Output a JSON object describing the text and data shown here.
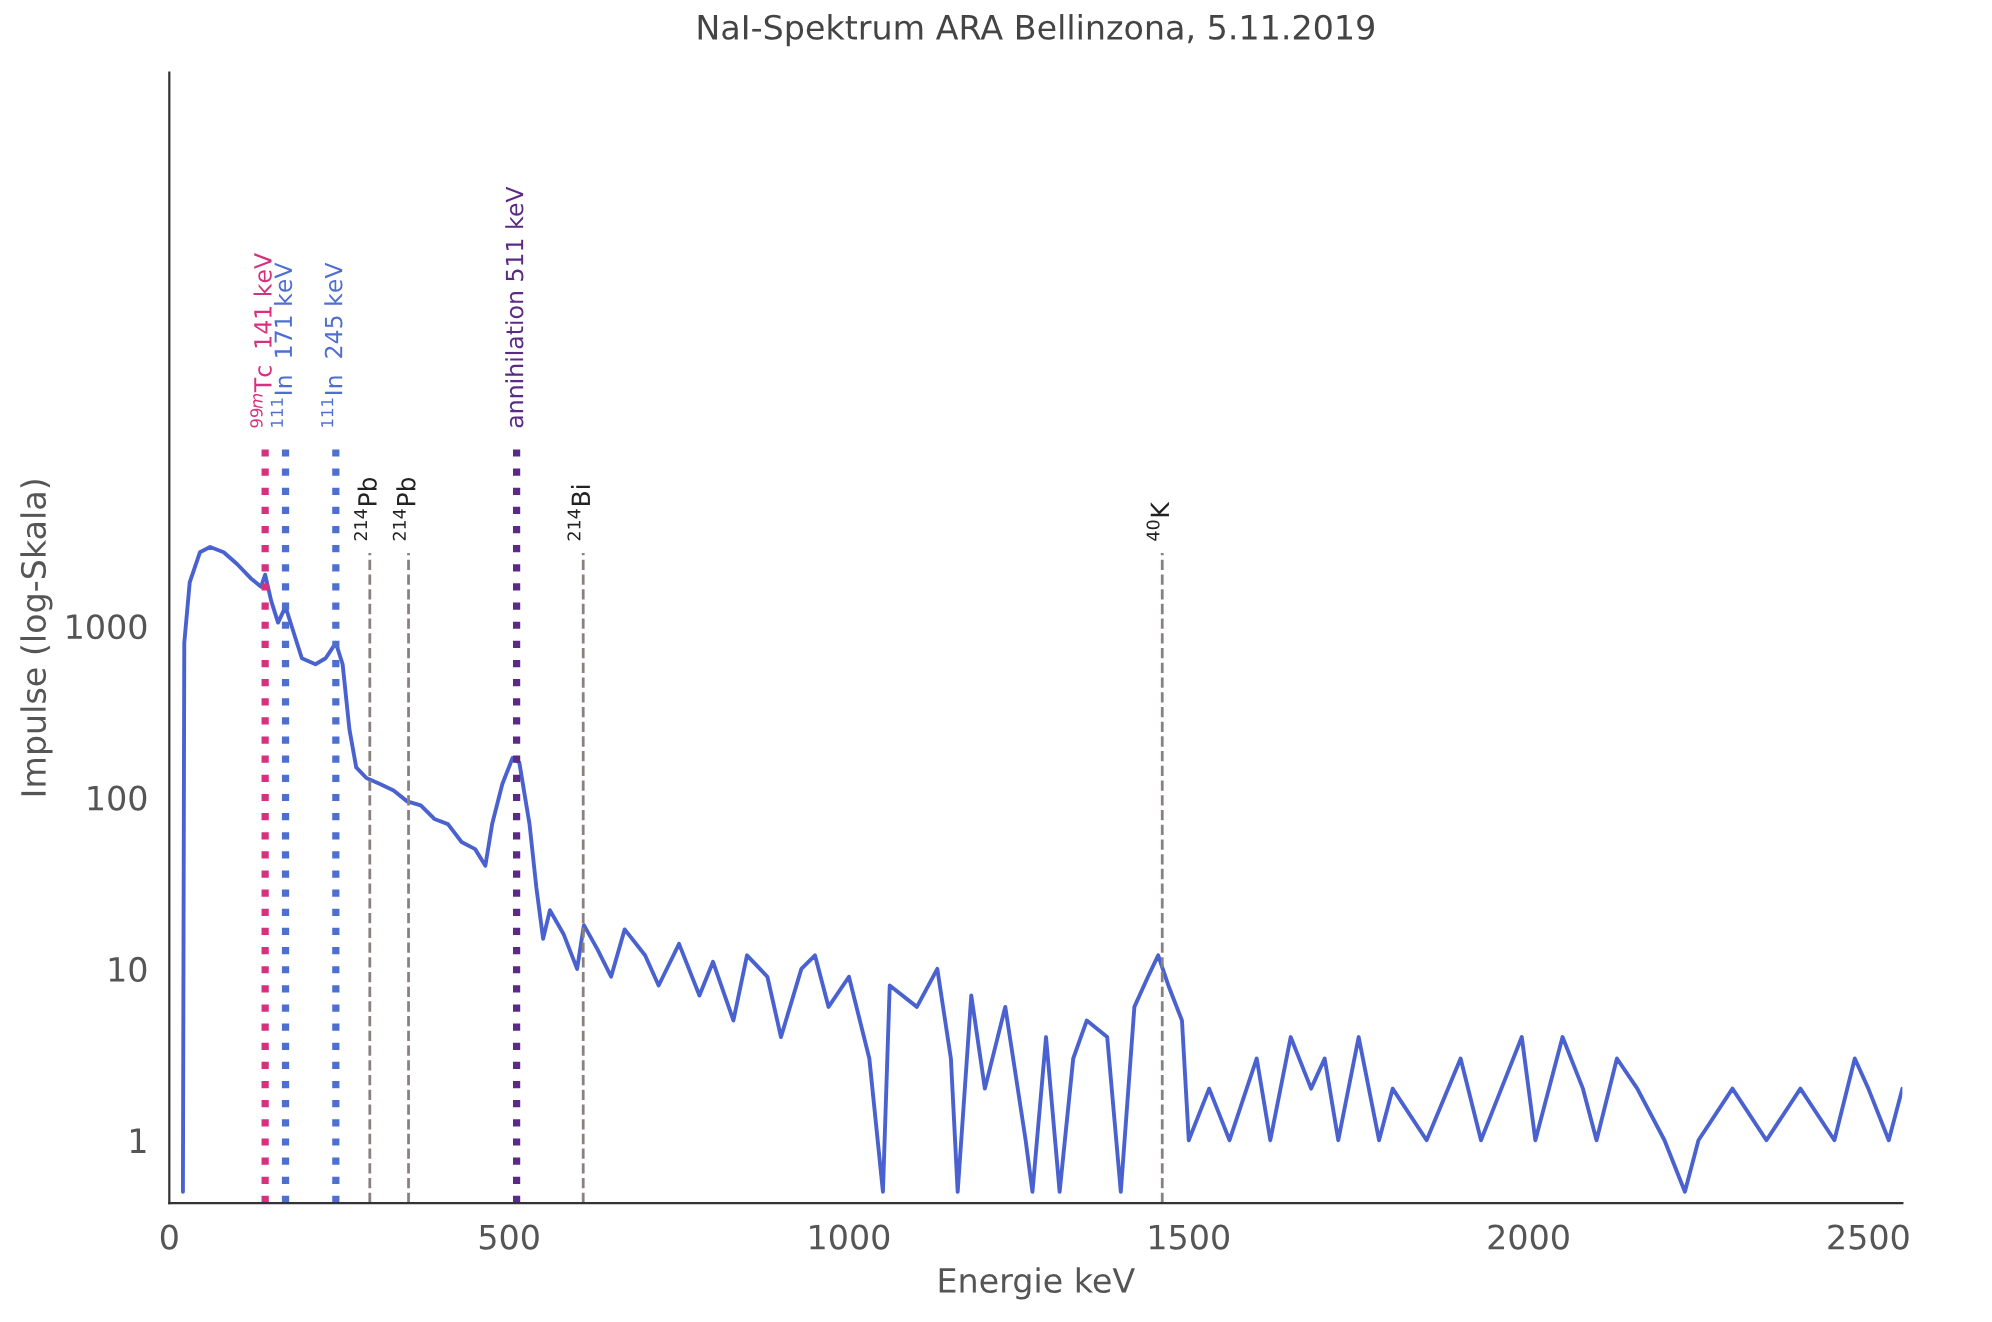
{
  "chart_data": {
    "type": "line",
    "title": "NaI-Spektrum ARA Bellinzona, 5.11.2019",
    "xlabel": "Energie keV",
    "ylabel": "Impulse (log-Skala)",
    "log": "y",
    "grid": false,
    "legend": false,
    "xlim": [
      0,
      2550
    ],
    "xticks": [
      0,
      500,
      1000,
      1500,
      2000,
      2500
    ],
    "ylim": [
      0.43,
      1700000
    ],
    "yticks": [
      1,
      10,
      100,
      1000
    ],
    "series": [
      {
        "color": "#4a62d0",
        "x": [
          20,
          22,
          30,
          45,
          60,
          80,
          100,
          120,
          135,
          141,
          150,
          160,
          171,
          180,
          195,
          215,
          230,
          245,
          255,
          265,
          275,
          290,
          310,
          330,
          350,
          370,
          390,
          410,
          430,
          450,
          465,
          475,
          490,
          505,
          515,
          530,
          540,
          550,
          560,
          580,
          600,
          610,
          630,
          650,
          670,
          700,
          720,
          750,
          780,
          800,
          830,
          850,
          880,
          900,
          930,
          950,
          970,
          1000,
          1030,
          1050,
          1060,
          1100,
          1130,
          1150,
          1160,
          1180,
          1200,
          1230,
          1260,
          1270,
          1290,
          1310,
          1330,
          1350,
          1380,
          1400,
          1420,
          1440,
          1455,
          1470,
          1490,
          1500,
          1530,
          1560,
          1600,
          1620,
          1650,
          1680,
          1700,
          1720,
          1750,
          1780,
          1800,
          1850,
          1900,
          1930,
          1960,
          1990,
          2010,
          2050,
          2080,
          2100,
          2130,
          2160,
          2200,
          2230,
          2250,
          2300,
          2350,
          2400,
          2450,
          2480,
          2500,
          2530,
          2550
        ],
        "values": [
          0.5,
          800,
          1800,
          2700,
          2900,
          2700,
          2300,
          1900,
          1700,
          2000,
          1400,
          1050,
          1300,
          1000,
          650,
          600,
          650,
          800,
          600,
          250,
          150,
          130,
          120,
          110,
          95,
          90,
          75,
          70,
          55,
          50,
          40,
          70,
          120,
          170,
          160,
          70,
          30,
          15,
          22,
          16,
          10,
          18,
          13,
          9,
          17,
          12,
          8,
          14,
          7,
          11,
          5,
          12,
          9,
          4,
          10,
          12,
          6,
          9,
          3,
          0.5,
          8,
          6,
          10,
          3,
          0.5,
          7,
          2,
          6,
          1,
          0.5,
          4,
          0.5,
          3,
          5,
          4,
          0.5,
          6,
          9,
          12,
          8,
          5,
          1,
          2,
          1,
          3,
          1,
          4,
          2,
          3,
          1,
          4,
          1,
          2,
          1,
          3,
          1,
          2,
          4,
          1,
          4,
          2,
          1,
          3,
          2,
          1,
          0.5,
          1,
          2,
          1,
          2,
          1,
          3,
          2,
          1,
          2
        ]
      }
    ],
    "ref_lines": [
      {
        "axis": "x",
        "value": 141,
        "label": "$^{99m}$Tc  141 keV",
        "color": "#d6317f",
        "line_style": "dotted"
      },
      {
        "axis": "x",
        "value": 171,
        "label": "$^{111}$In  171 keV",
        "color": "#4f6fd0",
        "line_style": "dotted"
      },
      {
        "axis": "x",
        "value": 245,
        "label": "$^{111}$In  245 keV",
        "color": "#4f6fd0",
        "line_style": "dotted"
      },
      {
        "axis": "x",
        "value": 295,
        "label": "$^{214}$Pb",
        "color": "#8a8080",
        "line_style": "dashed"
      },
      {
        "axis": "x",
        "value": 352,
        "label": "$^{214}$Pb",
        "color": "#8a8080",
        "line_style": "dashed"
      },
      {
        "axis": "x",
        "value": 511,
        "label": "annihilation 511 keV",
        "color": "#5b2a86",
        "line_style": "dotted"
      },
      {
        "axis": "x",
        "value": 609,
        "label": "$^{214}$Bi",
        "color": "#8a8080",
        "line_style": "dashed"
      },
      {
        "axis": "x",
        "value": 1461,
        "label": "$^{40}$K",
        "color": "#8a8080",
        "line_style": "dashed"
      }
    ]
  }
}
